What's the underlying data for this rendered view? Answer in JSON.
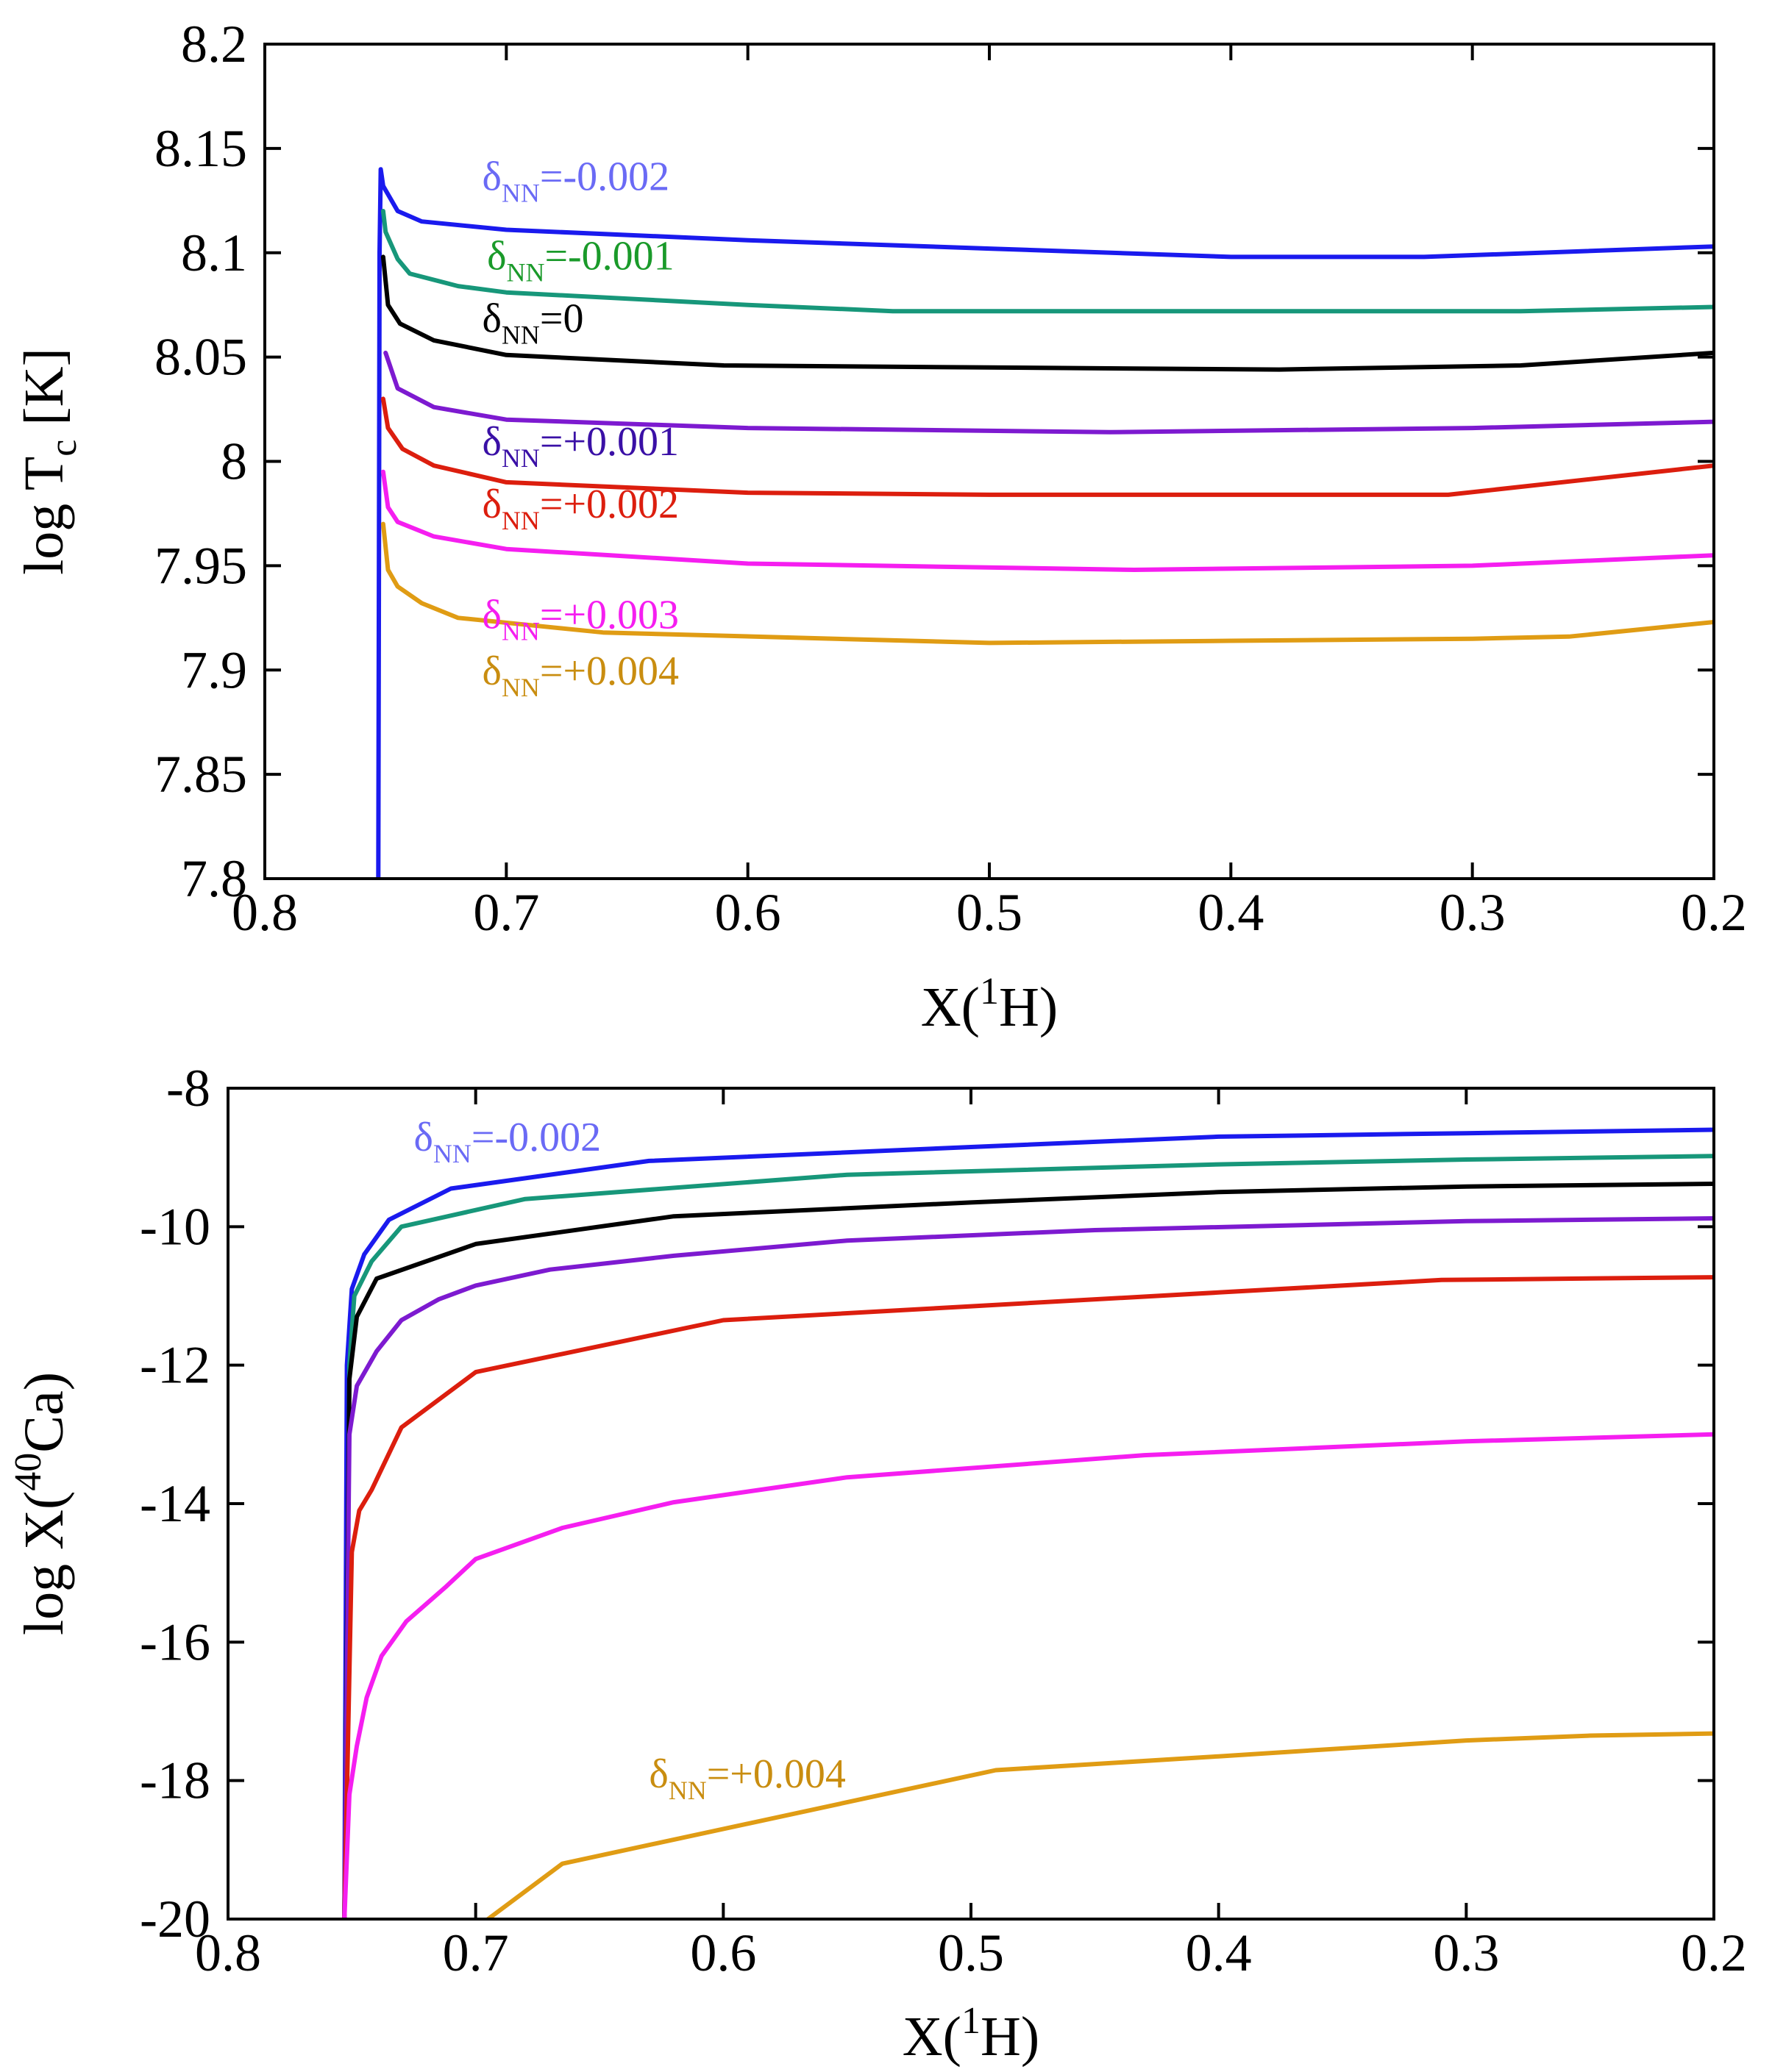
{
  "chart_data": [
    {
      "type": "line",
      "panel": "top",
      "xlabel_parts": [
        "X(",
        "1",
        "H)"
      ],
      "ylabel_parts": [
        "log T",
        "c",
        " [K]"
      ],
      "xlim": [
        0.8,
        0.2
      ],
      "ylim": [
        7.8,
        8.2
      ],
      "xticks": [
        0.8,
        0.7,
        0.6,
        0.5,
        0.4,
        0.3,
        0.2
      ],
      "xtick_labels": [
        "0.8",
        "0.7",
        "0.6",
        "0.5",
        "0.4",
        "0.3",
        "0.2"
      ],
      "yticks": [
        7.8,
        7.85,
        7.9,
        7.95,
        8.0,
        8.05,
        8.1,
        8.15,
        8.2
      ],
      "ytick_labels": [
        "7.8",
        "7.85",
        "7.9",
        "7.95",
        "8",
        "8.05",
        "8.1",
        "8.15",
        "8.2"
      ],
      "grid": false,
      "series": [
        {
          "name": "δNN=-0.002",
          "symbol": "δ",
          "sub": "NN",
          "value_text": "=-0.002",
          "color": "#1a1aee",
          "label_color": "#6a6af5",
          "x": [
            0.753,
            0.7525,
            0.752,
            0.751,
            0.745,
            0.735,
            0.7,
            0.6,
            0.5,
            0.4,
            0.32,
            0.2
          ],
          "y": [
            7.8,
            8.1,
            8.14,
            8.132,
            8.12,
            8.115,
            8.111,
            8.106,
            8.102,
            8.098,
            8.098,
            8.103
          ]
        },
        {
          "name": "δNN=-0.001",
          "symbol": "δ",
          "sub": "NN",
          "value_text": "=-0.001",
          "color": "#17977a",
          "label_color": "#1a9a2a",
          "x": [
            0.751,
            0.75,
            0.745,
            0.74,
            0.72,
            0.7,
            0.6,
            0.54,
            0.4,
            0.28,
            0.2
          ],
          "y": [
            8.12,
            8.11,
            8.097,
            8.09,
            8.084,
            8.081,
            8.075,
            8.072,
            8.072,
            8.072,
            8.074
          ]
        },
        {
          "name": "δNN=0",
          "symbol": "δ",
          "sub": "NN",
          "value_text": "=0",
          "color": "#000000",
          "label_color": "#000000",
          "x": [
            0.751,
            0.749,
            0.744,
            0.73,
            0.7,
            0.61,
            0.5,
            0.38,
            0.28,
            0.2
          ],
          "y": [
            8.098,
            8.075,
            8.066,
            8.058,
            8.051,
            8.046,
            8.045,
            8.044,
            8.046,
            8.052
          ]
        },
        {
          "name": "δNN=+0.001",
          "symbol": "δ",
          "sub": "NN",
          "value_text": "=+0.001",
          "color": "#7d1ad0",
          "label_color": "#3a10a6",
          "x": [
            0.75,
            0.745,
            0.73,
            0.7,
            0.6,
            0.45,
            0.3,
            0.2
          ],
          "y": [
            8.052,
            8.035,
            8.026,
            8.02,
            8.016,
            8.014,
            8.016,
            8.019
          ]
        },
        {
          "name": "δNN=+0.002",
          "symbol": "δ",
          "sub": "NN",
          "value_text": "=+0.002",
          "color": "#dc1e0e",
          "label_color": "#dc1e0e",
          "x": [
            0.751,
            0.749,
            0.743,
            0.73,
            0.7,
            0.6,
            0.5,
            0.4,
            0.31,
            0.2
          ],
          "y": [
            8.03,
            8.016,
            8.006,
            7.998,
            7.99,
            7.985,
            7.984,
            7.984,
            7.984,
            7.998
          ]
        },
        {
          "name": "δNN=+0.003",
          "symbol": "δ",
          "sub": "NN",
          "value_text": "=+0.003",
          "color": "#f51ef0",
          "label_color": "#f51ef0",
          "x": [
            0.751,
            0.749,
            0.745,
            0.73,
            0.7,
            0.6,
            0.44,
            0.3,
            0.2
          ],
          "y": [
            7.995,
            7.978,
            7.971,
            7.964,
            7.958,
            7.951,
            7.948,
            7.95,
            7.955
          ]
        },
        {
          "name": "δNN=+0.004",
          "symbol": "δ",
          "sub": "NN",
          "value_text": "=+0.004",
          "color": "#e09c14",
          "label_color": "#c98d10",
          "x": [
            0.751,
            0.749,
            0.745,
            0.735,
            0.72,
            0.66,
            0.5,
            0.4,
            0.3,
            0.26,
            0.2
          ],
          "y": [
            7.97,
            7.948,
            7.94,
            7.932,
            7.925,
            7.918,
            7.913,
            7.914,
            7.915,
            7.916,
            7.923
          ]
        }
      ],
      "labels": [
        {
          "series": 0,
          "x": 0.71,
          "y": 8.13
        },
        {
          "series": 1,
          "x": 0.708,
          "y": 8.092
        },
        {
          "series": 2,
          "x": 0.71,
          "y": 8.062
        },
        {
          "series": 3,
          "x": 0.71,
          "y": 8.003
        },
        {
          "series": 4,
          "x": 0.71,
          "y": 7.973
        },
        {
          "series": 5,
          "x": 0.71,
          "y": 7.92
        },
        {
          "series": 6,
          "x": 0.71,
          "y": 7.893
        }
      ]
    },
    {
      "type": "line",
      "panel": "bottom",
      "xlabel_parts": [
        "X(",
        "1",
        "H)"
      ],
      "ylabel_parts": [
        "log X(",
        "40",
        "Ca)"
      ],
      "xlim": [
        0.8,
        0.2
      ],
      "ylim": [
        -20,
        -8
      ],
      "xticks": [
        0.8,
        0.7,
        0.6,
        0.5,
        0.4,
        0.3,
        0.2
      ],
      "xtick_labels": [
        "0.8",
        "0.7",
        "0.6",
        "0.5",
        "0.4",
        "0.3",
        "0.2"
      ],
      "yticks": [
        -20,
        -18,
        -16,
        -14,
        -12,
        -10,
        -8
      ],
      "ytick_labels": [
        "-20",
        "-18",
        "-16",
        "-14",
        "-12",
        "-10",
        "-8"
      ],
      "grid": false,
      "series": [
        {
          "name": "δNN=-0.002",
          "symbol": "δ",
          "sub": "NN",
          "value_text": "=-0.002",
          "color": "#1a1aee",
          "label_color": "#6a6af5",
          "x": [
            0.753,
            0.752,
            0.75,
            0.745,
            0.735,
            0.71,
            0.63,
            0.5,
            0.4,
            0.3,
            0.2
          ],
          "y": [
            -20,
            -12,
            -10.9,
            -10.4,
            -9.9,
            -9.45,
            -9.05,
            -8.85,
            -8.7,
            -8.65,
            -8.6
          ]
        },
        {
          "name": "δNN=-0.001",
          "color": "#17977a",
          "x": [
            0.753,
            0.751,
            0.749,
            0.742,
            0.73,
            0.68,
            0.55,
            0.4,
            0.3,
            0.2
          ],
          "y": [
            -20,
            -12,
            -11,
            -10.5,
            -10,
            -9.6,
            -9.25,
            -9.1,
            -9.03,
            -8.98
          ]
        },
        {
          "name": "δNN=0",
          "color": "#000000",
          "x": [
            0.753,
            0.751,
            0.748,
            0.74,
            0.7,
            0.62,
            0.5,
            0.4,
            0.3,
            0.2
          ],
          "y": [
            -20,
            -12.2,
            -11.3,
            -10.75,
            -10.25,
            -9.85,
            -9.65,
            -9.5,
            -9.42,
            -9.38
          ]
        },
        {
          "name": "δNN=+0.001",
          "color": "#7d1ad0",
          "x": [
            0.753,
            0.751,
            0.748,
            0.74,
            0.73,
            0.715,
            0.7,
            0.67,
            0.62,
            0.55,
            0.45,
            0.3,
            0.2
          ],
          "y": [
            -20,
            -13,
            -12.3,
            -11.8,
            -11.35,
            -11.05,
            -10.85,
            -10.62,
            -10.42,
            -10.2,
            -10.05,
            -9.92,
            -9.88
          ]
        },
        {
          "name": "δNN=+0.002",
          "color": "#dc1e0e",
          "x": [
            0.753,
            0.75,
            0.747,
            0.742,
            0.73,
            0.7,
            0.6,
            0.5,
            0.4,
            0.31,
            0.2
          ],
          "y": [
            -20,
            -14.7,
            -14.1,
            -13.8,
            -12.9,
            -12.1,
            -11.35,
            -11.15,
            -10.95,
            -10.77,
            -10.73
          ]
        },
        {
          "name": "δNN=+0.003",
          "color": "#f51ef0",
          "x": [
            0.753,
            0.751,
            0.748,
            0.744,
            0.738,
            0.728,
            0.712,
            0.7,
            0.665,
            0.62,
            0.55,
            0.43,
            0.3,
            0.2
          ],
          "y": [
            -20,
            -18.2,
            -17.5,
            -16.8,
            -16.2,
            -15.7,
            -15.2,
            -14.8,
            -14.35,
            -13.98,
            -13.62,
            -13.3,
            -13.1,
            -13.0
          ]
        },
        {
          "name": "δNN=+0.004",
          "symbol": "δ",
          "sub": "NN",
          "value_text": "=+0.004",
          "color": "#e09c14",
          "label_color": "#c98d10",
          "x": [
            0.695,
            0.665,
            0.49,
            0.4,
            0.3,
            0.25,
            0.2
          ],
          "y": [
            -20,
            -19.2,
            -17.85,
            -17.65,
            -17.42,
            -17.35,
            -17.32
          ]
        }
      ],
      "labels": [
        {
          "series": 0,
          "x": 0.725,
          "y": -8.9
        },
        {
          "series": 6,
          "x": 0.63,
          "y": -18.1
        }
      ]
    }
  ]
}
